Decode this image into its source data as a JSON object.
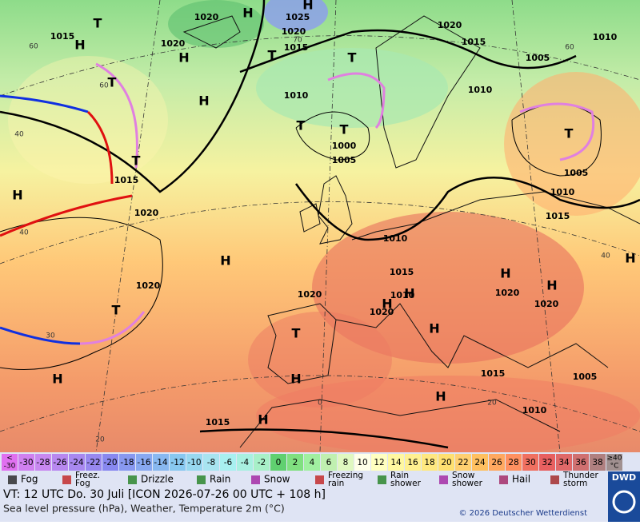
{
  "map": {
    "pressure_labels": [
      1020,
      1025,
      1015,
      1020,
      1020,
      1015,
      1020,
      1015,
      1005,
      1010,
      1010,
      1010,
      1000,
      1005,
      1015,
      1020,
      1005,
      1010,
      1015,
      1010,
      1015,
      1010,
      1020,
      1020,
      1020,
      1020,
      1020,
      1015,
      1005,
      1010,
      1015
    ],
    "centers": [
      "H",
      "H",
      "H",
      "T",
      "H",
      "T",
      "T",
      "H",
      "T",
      "T",
      "T",
      "H",
      "T",
      "H",
      "T",
      "H",
      "H",
      "H",
      "H",
      "H",
      "H",
      "H",
      "T",
      "H",
      "H",
      "H",
      "T"
    ],
    "isotherm_labels": [
      60,
      60,
      70,
      60,
      40,
      40,
      30,
      20,
      40,
      20,
      0
    ]
  },
  "temperature_scale": [
    {
      "label": [
        "<",
        "-30"
      ],
      "color": "#e070f0"
    },
    {
      "label": -30,
      "color": "#d080f0"
    },
    {
      "label": -28,
      "color": "#c888f0"
    },
    {
      "label": -26,
      "color": "#b888f0"
    },
    {
      "label": -24,
      "color": "#a888f0"
    },
    {
      "label": -22,
      "color": "#9888f0"
    },
    {
      "label": -20,
      "color": "#8888f0"
    },
    {
      "label": -18,
      "color": "#8898f0"
    },
    {
      "label": -16,
      "color": "#88a8f0"
    },
    {
      "label": -14,
      "color": "#88b8f0"
    },
    {
      "label": -12,
      "color": "#88c8f0"
    },
    {
      "label": -10,
      "color": "#98d8f0"
    },
    {
      "label": -8,
      "color": "#a8e4f0"
    },
    {
      "label": -6,
      "color": "#a8f0f0"
    },
    {
      "label": -4,
      "color": "#a8f0e0"
    },
    {
      "label": -2,
      "color": "#a8f0c8"
    },
    {
      "label": 0,
      "color": "#60d070"
    },
    {
      "label": 2,
      "color": "#80e080"
    },
    {
      "label": 4,
      "color": "#a0f0a0"
    },
    {
      "label": 6,
      "color": "#c0f0b0"
    },
    {
      "label": 8,
      "color": "#e0f8c0"
    },
    {
      "label": 10,
      "color": "#ffffe8"
    },
    {
      "label": 12,
      "color": "#ffffc0"
    },
    {
      "label": 14,
      "color": "#fff8a0"
    },
    {
      "label": 16,
      "color": "#fff090"
    },
    {
      "label": 18,
      "color": "#ffe880"
    },
    {
      "label": 20,
      "color": "#ffe070"
    },
    {
      "label": 22,
      "color": "#ffd070"
    },
    {
      "label": 24,
      "color": "#ffc060"
    },
    {
      "label": 26,
      "color": "#ffa860"
    },
    {
      "label": 28,
      "color": "#ff9060"
    },
    {
      "label": 30,
      "color": "#f07060"
    },
    {
      "label": 32,
      "color": "#e86060"
    },
    {
      "label": 34,
      "color": "#e06868"
    },
    {
      "label": 36,
      "color": "#d07070"
    },
    {
      "label": 38,
      "color": "#b08080"
    },
    {
      "label": [
        "≥40",
        "°C"
      ],
      "color": "#a09090"
    }
  ],
  "legend": [
    {
      "label": [
        "Fog"
      ]
    },
    {
      "label": [
        "Freez.",
        "Fog"
      ]
    },
    {
      "label": [
        "Drizzle"
      ]
    },
    {
      "label": [
        "Rain"
      ]
    },
    {
      "label": [
        "Snow"
      ]
    },
    {
      "label": [
        "Freezing",
        "rain"
      ]
    },
    {
      "label": [
        "Rain",
        "shower"
      ]
    },
    {
      "label": [
        "Snow",
        "shower"
      ]
    },
    {
      "label": [
        "Hail"
      ]
    },
    {
      "label": [
        "Thunder",
        "storm"
      ]
    }
  ],
  "footer": {
    "valid_time": "VT: 12 UTC Do.  30 Juli [ICON 2026-07-26  00 UTC + 108 h]",
    "description": "Sea level pressure (hPa), Weather, Temperature 2m (°C)",
    "copyright": "© 2026 Deutscher Wetterdienst",
    "logo": "DWD"
  }
}
